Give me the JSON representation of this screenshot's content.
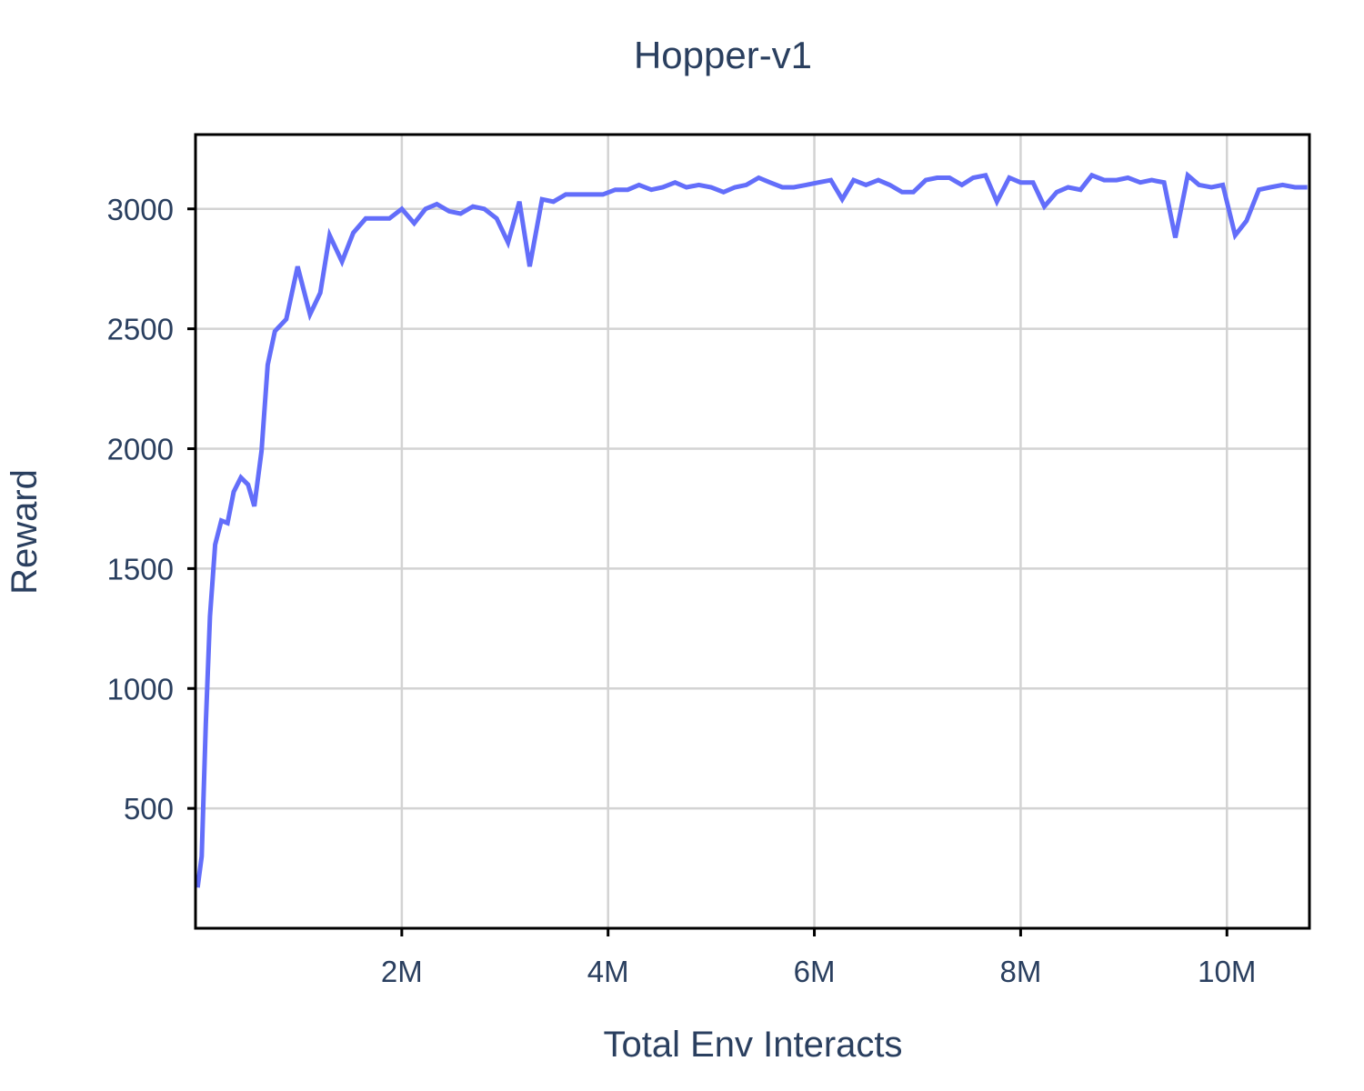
{
  "chart_data": {
    "type": "line",
    "title": "Hopper-v1",
    "xlabel": "Total Env Interacts",
    "ylabel": "Reward",
    "xlim": [
      0,
      10800000
    ],
    "ylim": [
      0,
      3310
    ],
    "x_ticks": [
      {
        "value": 2000000,
        "label": "2M"
      },
      {
        "value": 4000000,
        "label": "4M"
      },
      {
        "value": 6000000,
        "label": "6M"
      },
      {
        "value": 8000000,
        "label": "8M"
      },
      {
        "value": 10000000,
        "label": "10M"
      }
    ],
    "y_ticks": [
      {
        "value": 500,
        "label": "500"
      },
      {
        "value": 1000,
        "label": "1000"
      },
      {
        "value": 1500,
        "label": "1500"
      },
      {
        "value": 2000,
        "label": "2000"
      },
      {
        "value": 2500,
        "label": "2500"
      },
      {
        "value": 3000,
        "label": "3000"
      }
    ],
    "grid": true,
    "legend": "none",
    "series": [
      {
        "color": "#636efa",
        "x": [
          20000,
          60000,
          100000,
          140000,
          190000,
          250000,
          310000,
          370000,
          440000,
          510000,
          570000,
          640000,
          700000,
          770000,
          880000,
          990000,
          1110000,
          1210000,
          1300000,
          1420000,
          1530000,
          1650000,
          1760000,
          1880000,
          2000000,
          2120000,
          2230000,
          2340000,
          2460000,
          2570000,
          2690000,
          2800000,
          2920000,
          3030000,
          3140000,
          3240000,
          3360000,
          3470000,
          3590000,
          3700000,
          3820000,
          3950000,
          4070000,
          4190000,
          4300000,
          4420000,
          4530000,
          4650000,
          4760000,
          4880000,
          5000000,
          5120000,
          5230000,
          5340000,
          5460000,
          5570000,
          5690000,
          5800000,
          5920000,
          6040000,
          6160000,
          6270000,
          6380000,
          6500000,
          6620000,
          6730000,
          6850000,
          6960000,
          7080000,
          7190000,
          7310000,
          7430000,
          7540000,
          7660000,
          7770000,
          7890000,
          8000000,
          8120000,
          8230000,
          8350000,
          8460000,
          8580000,
          8690000,
          8810000,
          8930000,
          9040000,
          9160000,
          9270000,
          9390000,
          9500000,
          9620000,
          9730000,
          9850000,
          9960000,
          10080000,
          10190000,
          10310000,
          10420000,
          10540000,
          10660000,
          10780000
        ],
        "y": [
          170,
          300,
          850,
          1300,
          1600,
          1700,
          1690,
          1820,
          1880,
          1850,
          1760,
          1990,
          2350,
          2490,
          2540,
          2760,
          2560,
          2650,
          2890,
          2780,
          2900,
          2960,
          2960,
          2960,
          3000,
          2940,
          3000,
          3020,
          2990,
          2980,
          3010,
          3000,
          2960,
          2860,
          3030,
          2760,
          3040,
          3030,
          3060,
          3060,
          3060,
          3060,
          3080,
          3080,
          3100,
          3080,
          3090,
          3110,
          3090,
          3100,
          3090,
          3070,
          3090,
          3100,
          3130,
          3110,
          3090,
          3090,
          3100,
          3110,
          3120,
          3040,
          3120,
          3100,
          3120,
          3100,
          3070,
          3070,
          3120,
          3130,
          3130,
          3100,
          3130,
          3140,
          3030,
          3130,
          3110,
          3110,
          3010,
          3070,
          3090,
          3080,
          3140,
          3120,
          3120,
          3130,
          3110,
          3120,
          3110,
          2880,
          3140,
          3100,
          3090,
          3100,
          2890,
          2950,
          3080,
          3090,
          3100,
          3090,
          3090
        ]
      }
    ]
  }
}
